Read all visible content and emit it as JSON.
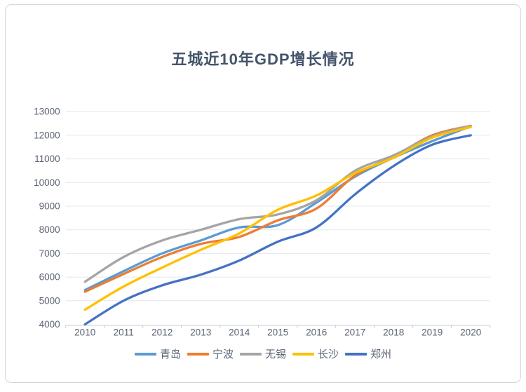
{
  "card": {
    "title": "五城近10年GDP增长情况"
  },
  "chart_data": {
    "type": "line",
    "title": "五城近10年GDP增长情况",
    "categories": [
      "2010",
      "2011",
      "2012",
      "2013",
      "2014",
      "2015",
      "2016",
      "2017",
      "2018",
      "2019",
      "2020"
    ],
    "series": [
      {
        "key": "qingdao",
        "name": "青岛",
        "color": "#5B9BD5",
        "values": [
          5450,
          6250,
          7000,
          7550,
          8100,
          8200,
          9150,
          10250,
          11050,
          11750,
          12380
        ]
      },
      {
        "key": "ningbo",
        "name": "宁波",
        "color": "#ED7D31",
        "values": [
          5380,
          6130,
          6850,
          7400,
          7700,
          8400,
          8900,
          10300,
          11100,
          12000,
          12400
        ]
      },
      {
        "key": "wuxi",
        "name": "无锡",
        "color": "#A5A5A5",
        "values": [
          5800,
          6850,
          7550,
          8000,
          8450,
          8650,
          9250,
          10500,
          11150,
          11950,
          12400
        ]
      },
      {
        "key": "changsha",
        "name": "长沙",
        "color": "#FFC000",
        "values": [
          4620,
          5600,
          6400,
          7150,
          7850,
          8850,
          9450,
          10400,
          11050,
          11900,
          12350
        ]
      },
      {
        "key": "zhengzhou",
        "name": "郑州",
        "color": "#4472C4",
        "values": [
          4000,
          5000,
          5650,
          6100,
          6700,
          7500,
          8100,
          9500,
          10700,
          11600,
          12000
        ]
      }
    ],
    "ylabel": "",
    "xlabel": "",
    "ylim": [
      4000,
      13000
    ],
    "ytick_step": 1000,
    "grid": true,
    "smooth_lines": true,
    "legend_position": "bottom"
  }
}
